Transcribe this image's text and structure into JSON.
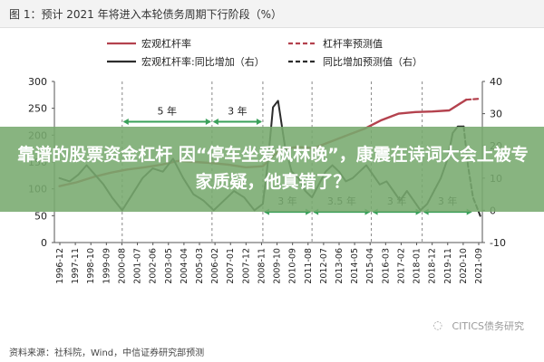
{
  "header": {
    "title": "图 1：预计 2021 年将进入本轮债务周期下行阶段（%）"
  },
  "footer": {
    "source": "资料来源：社科院，Wind，中信证券研究部预测"
  },
  "watermark": {
    "text": "CITICS债务研究"
  },
  "overlay": {
    "headline": "靠谱的股票资金杠杆 因“停车坐爱枫林晚”，康震在诗词大会上被专家质疑，他真错了？"
  },
  "colors": {
    "leverage": "#b4424e",
    "yoy": "#2c2c2c",
    "arrow": "#3aa05a",
    "grid_axis": "#888888"
  },
  "chart_data": {
    "type": "line",
    "title": "图 1：预计 2021 年将进入本轮债务周期下行阶段（%）",
    "left_axis": {
      "min": 0,
      "max": 300,
      "ticks": [
        0,
        50,
        100,
        150,
        200,
        250,
        300
      ]
    },
    "right_axis": {
      "min": -10,
      "max": 40,
      "ticks": [
        -10,
        0,
        10,
        20,
        30,
        40
      ]
    },
    "x_ticks": [
      "1996-12",
      "1997-11",
      "1998-10",
      "1999-09",
      "2000-08",
      "2001-07",
      "2002-06",
      "2003-05",
      "2004-04",
      "2005-03",
      "2006-02",
      "2007-01",
      "2007-12",
      "2008-11",
      "2009-10",
      "2010-09",
      "2011-08",
      "2012-07",
      "2013-06",
      "2014-05",
      "2015-04",
      "2016-03",
      "2017-02",
      "2018-01",
      "2018-12",
      "2019-11",
      "2020-10",
      "2021-09"
    ],
    "legend": [
      {
        "name": "宏观杠杆率",
        "style": "solid",
        "color": "#b4424e"
      },
      {
        "name": "杠杆率预测值",
        "style": "dashed",
        "color": "#b4424e"
      },
      {
        "name": "宏观杠杆率:同比增加（右）",
        "style": "solid",
        "color": "#2c2c2c"
      },
      {
        "name": "同比增加预测值（右）",
        "style": "dashed",
        "color": "#2c2c2c"
      }
    ],
    "series": [
      {
        "name": "宏观杠杆率",
        "axis": "left",
        "x": [
          1996.9,
          1997.9,
          1998.9,
          1999.9,
          2000.9,
          2001.9,
          2002.9,
          2003.9,
          2004.9,
          2005.9,
          2006.9,
          2007.9,
          2008.9,
          2009.9,
          2010.9,
          2011.9,
          2012.9,
          2013.9,
          2014.9,
          2015.9,
          2016.9,
          2017.9,
          2018.9,
          2019.9,
          2020.9
        ],
        "values": [
          105,
          112,
          122,
          130,
          136,
          140,
          145,
          152,
          150,
          148,
          145,
          140,
          142,
          173,
          178,
          176,
          188,
          200,
          212,
          228,
          240,
          243,
          244,
          246,
          266
        ]
      },
      {
        "name": "杠杆率预测值",
        "axis": "left",
        "x": [
          2020.9,
          2021.75
        ],
        "values": [
          266,
          268
        ]
      },
      {
        "name": "宏观杠杆率:同比增加（右）",
        "axis": "right",
        "x": [
          1996.9,
          1997.5,
          1998.0,
          1998.5,
          1999.0,
          1999.5,
          2000.0,
          2000.6,
          2001.2,
          2001.8,
          2002.4,
          2003.0,
          2003.6,
          2004.2,
          2004.8,
          2005.4,
          2006.0,
          2006.6,
          2007.2,
          2007.8,
          2008.4,
          2008.9,
          2009.2,
          2009.5,
          2009.8,
          2010.2,
          2010.6,
          2011.0,
          2011.4,
          2011.8,
          2012.2,
          2012.6,
          2013.0,
          2013.4,
          2013.8,
          2014.2,
          2014.6,
          2015.0,
          2015.4,
          2015.8,
          2016.2,
          2016.6,
          2017.0,
          2017.4,
          2017.8,
          2018.2,
          2018.6,
          2019.0,
          2019.4,
          2019.8,
          2020.1,
          2020.4,
          2020.75
        ],
        "values": [
          10,
          9,
          11,
          14,
          11,
          8,
          4,
          0,
          5,
          10,
          13,
          12,
          16,
          10,
          5,
          3,
          0,
          3,
          6,
          4,
          0,
          2,
          15,
          32,
          34,
          20,
          12,
          10,
          6,
          4,
          8,
          12,
          14,
          12,
          9,
          10,
          12,
          14,
          11,
          8,
          9,
          6,
          3,
          6,
          3,
          0,
          2,
          6,
          10,
          16,
          24,
          26,
          26
        ]
      },
      {
        "name": "同比增加预测值（右）",
        "axis": "right",
        "x": [
          2020.75,
          2021.0,
          2021.3,
          2021.75
        ],
        "values": [
          26,
          14,
          4,
          -2
        ]
      }
    ],
    "annotations": [
      {
        "label": "5 年",
        "from": 2000.6,
        "to": 2005.9,
        "y_left": 225
      },
      {
        "label": "3 年",
        "from": 2005.9,
        "to": 2008.9,
        "y_left": 225
      },
      {
        "label": "3 年",
        "from": 2008.9,
        "to": 2011.8,
        "y_left": 57
      },
      {
        "label": "3.5 年",
        "from": 2011.8,
        "to": 2015.3,
        "y_left": 57
      },
      {
        "label": "3 年",
        "from": 2015.3,
        "to": 2018.3,
        "y_left": 57
      },
      {
        "label": "3 年",
        "from": 2018.3,
        "to": 2021.3,
        "y_left": 57
      }
    ],
    "vlines": [
      2000.6,
      2005.9,
      2008.9,
      2011.8,
      2015.3,
      2018.3
    ]
  }
}
